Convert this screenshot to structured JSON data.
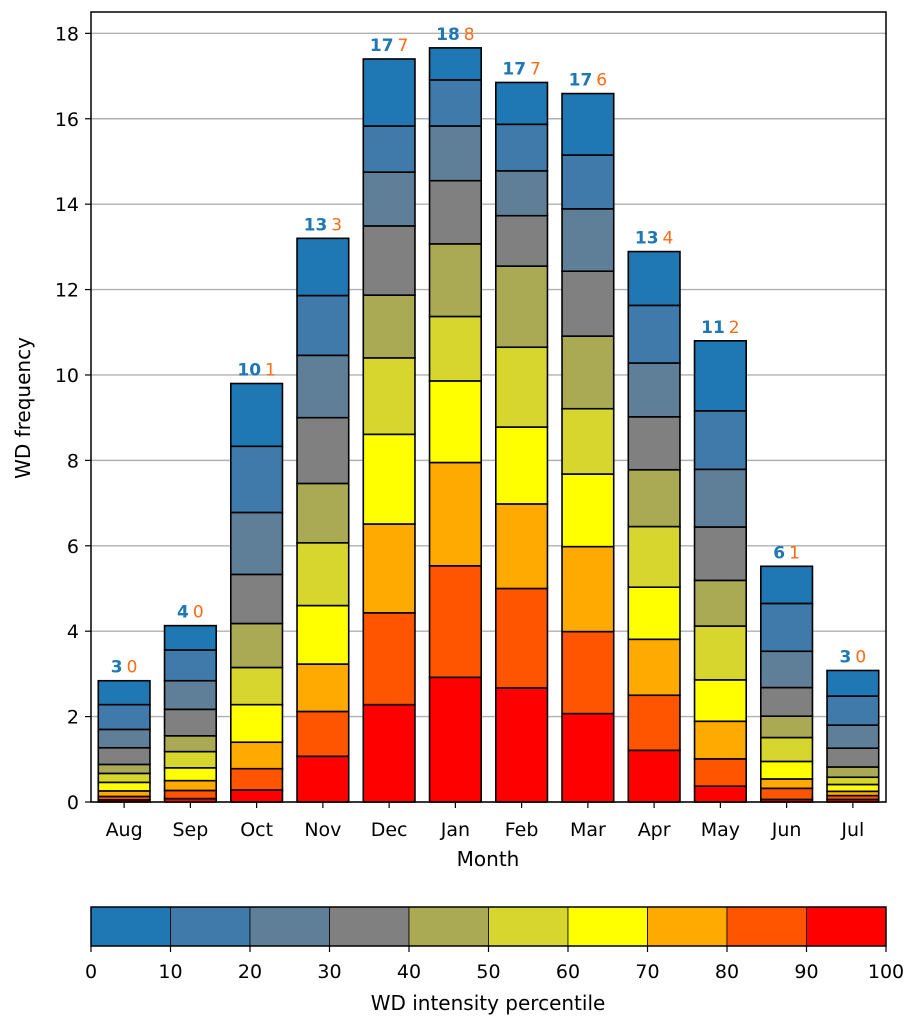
{
  "chart_data": {
    "type": "bar",
    "stacked": true,
    "xlabel": "Month",
    "ylabel": "WD frequency",
    "ylim": [
      0,
      18.5
    ],
    "yticks": [
      0,
      2,
      4,
      6,
      8,
      10,
      12,
      14,
      16,
      18
    ],
    "grid": "horizontal",
    "categories": [
      "Aug",
      "Sep",
      "Oct",
      "Nov",
      "Dec",
      "Jan",
      "Feb",
      "Mar",
      "Apr",
      "May",
      "Jun",
      "Jul"
    ],
    "top_labels_left": [
      "3",
      "4",
      "10",
      "13",
      "17",
      "18",
      "17",
      "17",
      "13",
      "11",
      "6",
      "3"
    ],
    "top_labels_right": [
      "0",
      "0",
      "1",
      "3",
      "7",
      "8",
      "7",
      "6",
      "4",
      "2",
      "1",
      "0"
    ],
    "top_label_colors": {
      "left": "#1f77b4",
      "right": "#ff6a14"
    },
    "bin_colors": [
      "#ff0000",
      "#ff5500",
      "#ffaa00",
      "#ffff00",
      "#d6d62e",
      "#aaaa55",
      "#808080",
      "#5e7f97",
      "#3f7aaa",
      "#1f77b4"
    ],
    "series": [
      {
        "bin": "90-100",
        "values": [
          0.05,
          0.08,
          0.28,
          1.07,
          2.28,
          2.92,
          2.67,
          2.07,
          1.21,
          0.37,
          0.06,
          0.06
        ]
      },
      {
        "bin": "80-90",
        "values": [
          0.08,
          0.19,
          0.5,
          1.05,
          2.15,
          2.61,
          2.33,
          1.92,
          1.29,
          0.64,
          0.26,
          0.09
        ]
      },
      {
        "bin": "70-80",
        "values": [
          0.13,
          0.23,
          0.62,
          1.11,
          2.08,
          2.42,
          1.98,
          1.99,
          1.31,
          0.88,
          0.22,
          0.1
        ]
      },
      {
        "bin": "60-70",
        "values": [
          0.2,
          0.3,
          0.88,
          1.37,
          2.1,
          1.91,
          1.8,
          1.7,
          1.22,
          0.97,
          0.41,
          0.16
        ]
      },
      {
        "bin": "50-60",
        "values": [
          0.21,
          0.38,
          0.87,
          1.47,
          1.79,
          1.51,
          1.87,
          1.53,
          1.42,
          1.26,
          0.56,
          0.17
        ]
      },
      {
        "bin": "40-50",
        "values": [
          0.21,
          0.37,
          1.03,
          1.39,
          1.47,
          1.7,
          1.9,
          1.7,
          1.33,
          1.07,
          0.5,
          0.24
        ]
      },
      {
        "bin": "30-40",
        "values": [
          0.39,
          0.62,
          1.15,
          1.54,
          1.62,
          1.48,
          1.18,
          1.52,
          1.24,
          1.25,
          0.67,
          0.44
        ]
      },
      {
        "bin": "20-30",
        "values": [
          0.43,
          0.67,
          1.45,
          1.46,
          1.26,
          1.28,
          1.05,
          1.46,
          1.26,
          1.35,
          0.85,
          0.54
        ]
      },
      {
        "bin": "10-20",
        "values": [
          0.58,
          0.72,
          1.55,
          1.4,
          1.08,
          1.08,
          1.09,
          1.26,
          1.35,
          1.37,
          1.12,
          0.68
        ]
      },
      {
        "bin": "0-10",
        "values": [
          0.56,
          0.57,
          1.47,
          1.34,
          1.57,
          0.75,
          0.98,
          1.44,
          1.26,
          1.64,
          0.87,
          0.6
        ]
      }
    ],
    "colorbar": {
      "label": "WD intensity percentile",
      "ticks": [
        "0",
        "10",
        "20",
        "30",
        "40",
        "50",
        "60",
        "70",
        "80",
        "90",
        "100"
      ],
      "colors": [
        "#1f77b4",
        "#3f7aaa",
        "#5e7f97",
        "#808080",
        "#aaaa55",
        "#d6d62e",
        "#ffff00",
        "#ffaa00",
        "#ff5500",
        "#ff0000"
      ]
    }
  }
}
